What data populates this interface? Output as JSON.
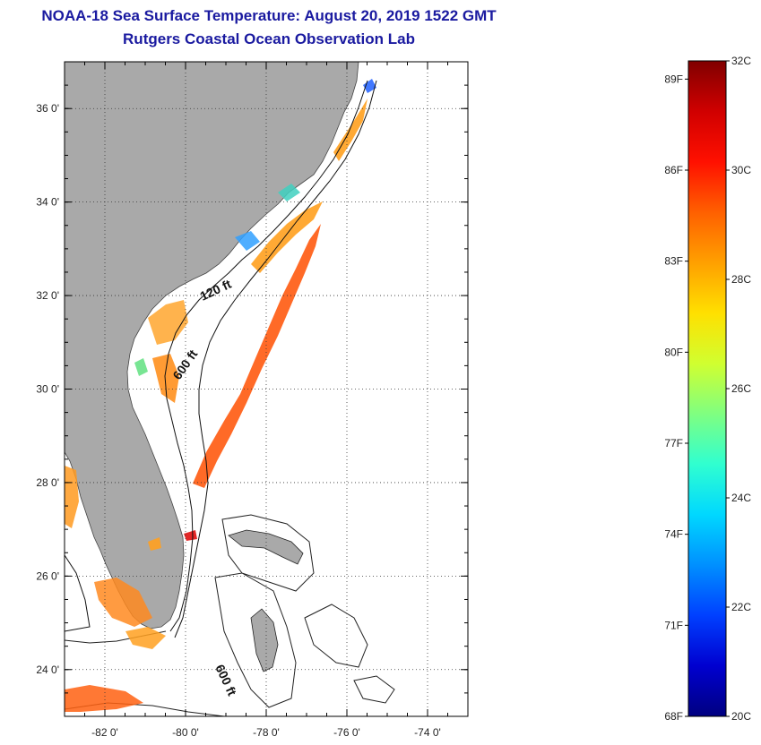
{
  "title": {
    "line1": "NOAA-18 Sea Surface Temperature:  August 20, 2019 1522 GMT",
    "line2": "Rutgers Coastal Ocean Observation Lab"
  },
  "map": {
    "lon_range": [
      -83,
      -73
    ],
    "lat_range": [
      23,
      37
    ],
    "lon_ticks": [
      {
        "lon": -82,
        "label": "-82 0'"
      },
      {
        "lon": -80,
        "label": "-80 0'"
      },
      {
        "lon": -78,
        "label": "-78 0'"
      },
      {
        "lon": -76,
        "label": "-76 0'"
      },
      {
        "lon": -74,
        "label": "-74 0'"
      }
    ],
    "lat_ticks": [
      {
        "lat": 36,
        "label": "36 0'"
      },
      {
        "lat": 34,
        "label": "34 0'"
      },
      {
        "lat": 32,
        "label": "32 0'"
      },
      {
        "lat": 30,
        "label": "30 0'"
      },
      {
        "lat": 28,
        "label": "28 0'"
      },
      {
        "lat": 26,
        "label": "26 0'"
      },
      {
        "lat": 24,
        "label": "24 0'"
      }
    ],
    "land_color": "#a9a9a9",
    "contour_labels": [
      {
        "text": "120 ft"
      },
      {
        "text": "600 ft"
      },
      {
        "text": "600 ft"
      }
    ]
  },
  "colorbar": {
    "min_c": 20,
    "max_c": 32,
    "celsius_labels": [
      {
        "value": 32,
        "label": "32C"
      },
      {
        "value": 30,
        "label": "30C"
      },
      {
        "value": 28,
        "label": "28C"
      },
      {
        "value": 26,
        "label": "26C"
      },
      {
        "value": 24,
        "label": "24C"
      },
      {
        "value": 22,
        "label": "22C"
      },
      {
        "value": 20,
        "label": "20C"
      }
    ],
    "fahrenheit_labels": [
      {
        "value": 89,
        "label": "89F"
      },
      {
        "value": 86,
        "label": "86F"
      },
      {
        "value": 83,
        "label": "83F"
      },
      {
        "value": 80,
        "label": "80F"
      },
      {
        "value": 77,
        "label": "77F"
      },
      {
        "value": 74,
        "label": "74F"
      },
      {
        "value": 71,
        "label": "71F"
      },
      {
        "value": 68,
        "label": "68F"
      }
    ],
    "colors": [
      "#000080",
      "#0000d0",
      "#0040ff",
      "#0090ff",
      "#00d8ff",
      "#30ffd0",
      "#80ff80",
      "#d0ff30",
      "#ffe000",
      "#ffa000",
      "#ff6000",
      "#ff1000",
      "#d00000",
      "#800000"
    ]
  }
}
